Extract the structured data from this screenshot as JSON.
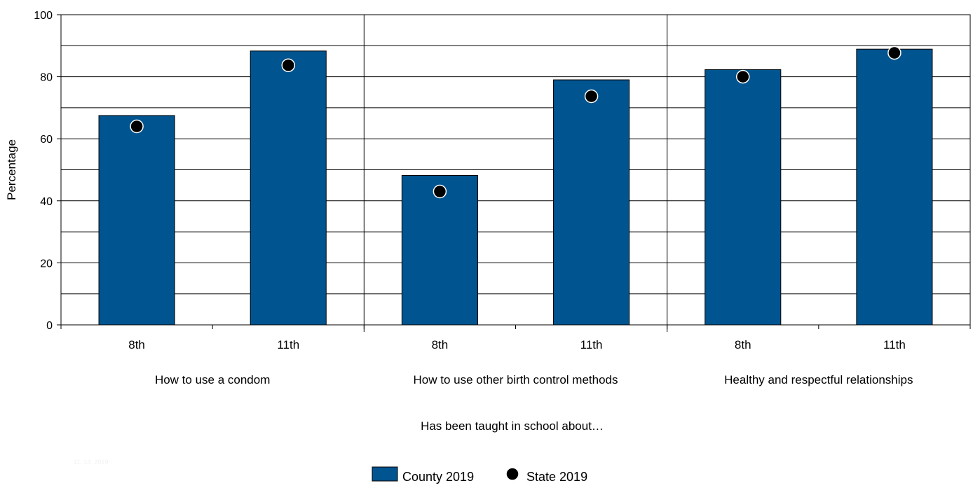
{
  "chart_data": {
    "type": "bar",
    "ylabel": "Percentage",
    "xlabel": "Has been taught in school about…",
    "ylim": [
      0,
      100
    ],
    "yticks": [
      0,
      20,
      40,
      60,
      80,
      100
    ],
    "grid": true,
    "groups": [
      {
        "label": "How to use a condom",
        "categories": [
          "8th",
          "11th"
        ]
      },
      {
        "label": "How to use other birth control methods",
        "categories": [
          "8th",
          "11th"
        ]
      },
      {
        "label": "Healthy and respectful relationships",
        "categories": [
          "8th",
          "11th"
        ]
      }
    ],
    "categories": [
      "8th",
      "11th",
      "8th",
      "11th",
      "8th",
      "11th"
    ],
    "series": [
      {
        "name": "County 2019",
        "mark": "bar",
        "color": "#00548f",
        "values": [
          67.5,
          88.3,
          48.2,
          79.0,
          82.3,
          88.9
        ]
      },
      {
        "name": "State 2019",
        "mark": "dot",
        "color": "#000000",
        "values": [
          64.0,
          83.7,
          43.0,
          73.7,
          80.0,
          87.7
        ]
      }
    ],
    "legend_position": "bottom-center",
    "faint_text": "11. 14. 2019"
  }
}
